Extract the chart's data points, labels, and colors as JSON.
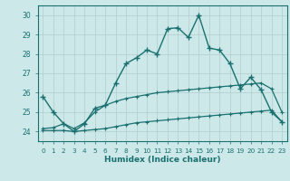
{
  "xlabel": "Humidex (Indice chaleur)",
  "bg_color": "#cce8e8",
  "grid_color": "#b0cccc",
  "line_color": "#1a7070",
  "xlim": [
    -0.5,
    23.5
  ],
  "ylim": [
    23.5,
    30.5
  ],
  "xticks": [
    0,
    1,
    2,
    3,
    4,
    5,
    6,
    7,
    8,
    9,
    10,
    11,
    12,
    13,
    14,
    15,
    16,
    17,
    18,
    19,
    20,
    21,
    22,
    23
  ],
  "yticks": [
    24,
    25,
    26,
    27,
    28,
    29,
    30
  ],
  "line1_x": [
    0,
    1,
    2,
    3,
    4,
    5,
    6,
    7,
    8,
    9,
    10,
    11,
    12,
    13,
    14,
    15,
    16,
    17,
    18,
    19,
    20,
    21,
    22,
    23
  ],
  "line1_y": [
    25.8,
    25.0,
    24.4,
    24.0,
    24.4,
    25.2,
    25.35,
    26.5,
    27.5,
    27.8,
    28.2,
    28.0,
    29.3,
    29.35,
    28.85,
    30.0,
    28.3,
    28.2,
    27.5,
    26.2,
    26.8,
    26.15,
    25.0,
    24.5
  ],
  "line2_full_x": [
    0,
    1,
    2,
    3,
    4,
    5,
    6,
    7,
    8,
    9,
    10,
    11,
    12,
    13,
    14,
    15,
    16,
    17,
    18,
    19,
    20,
    21,
    22,
    23
  ],
  "line2_full_y": [
    24.15,
    24.2,
    24.4,
    24.15,
    24.45,
    25.0,
    25.35,
    25.55,
    25.7,
    25.8,
    25.9,
    26.0,
    26.05,
    26.1,
    26.15,
    26.2,
    26.25,
    26.3,
    26.35,
    26.4,
    26.45,
    26.5,
    26.2,
    25.0
  ],
  "line3_full_x": [
    0,
    1,
    2,
    3,
    4,
    5,
    6,
    7,
    8,
    9,
    10,
    11,
    12,
    13,
    14,
    15,
    16,
    17,
    18,
    19,
    20,
    21,
    22,
    23
  ],
  "line3_full_y": [
    24.05,
    24.05,
    24.05,
    24.0,
    24.05,
    24.1,
    24.15,
    24.25,
    24.35,
    24.45,
    24.5,
    24.55,
    24.6,
    24.65,
    24.7,
    24.75,
    24.8,
    24.85,
    24.9,
    24.95,
    25.0,
    25.05,
    25.1,
    24.5
  ]
}
